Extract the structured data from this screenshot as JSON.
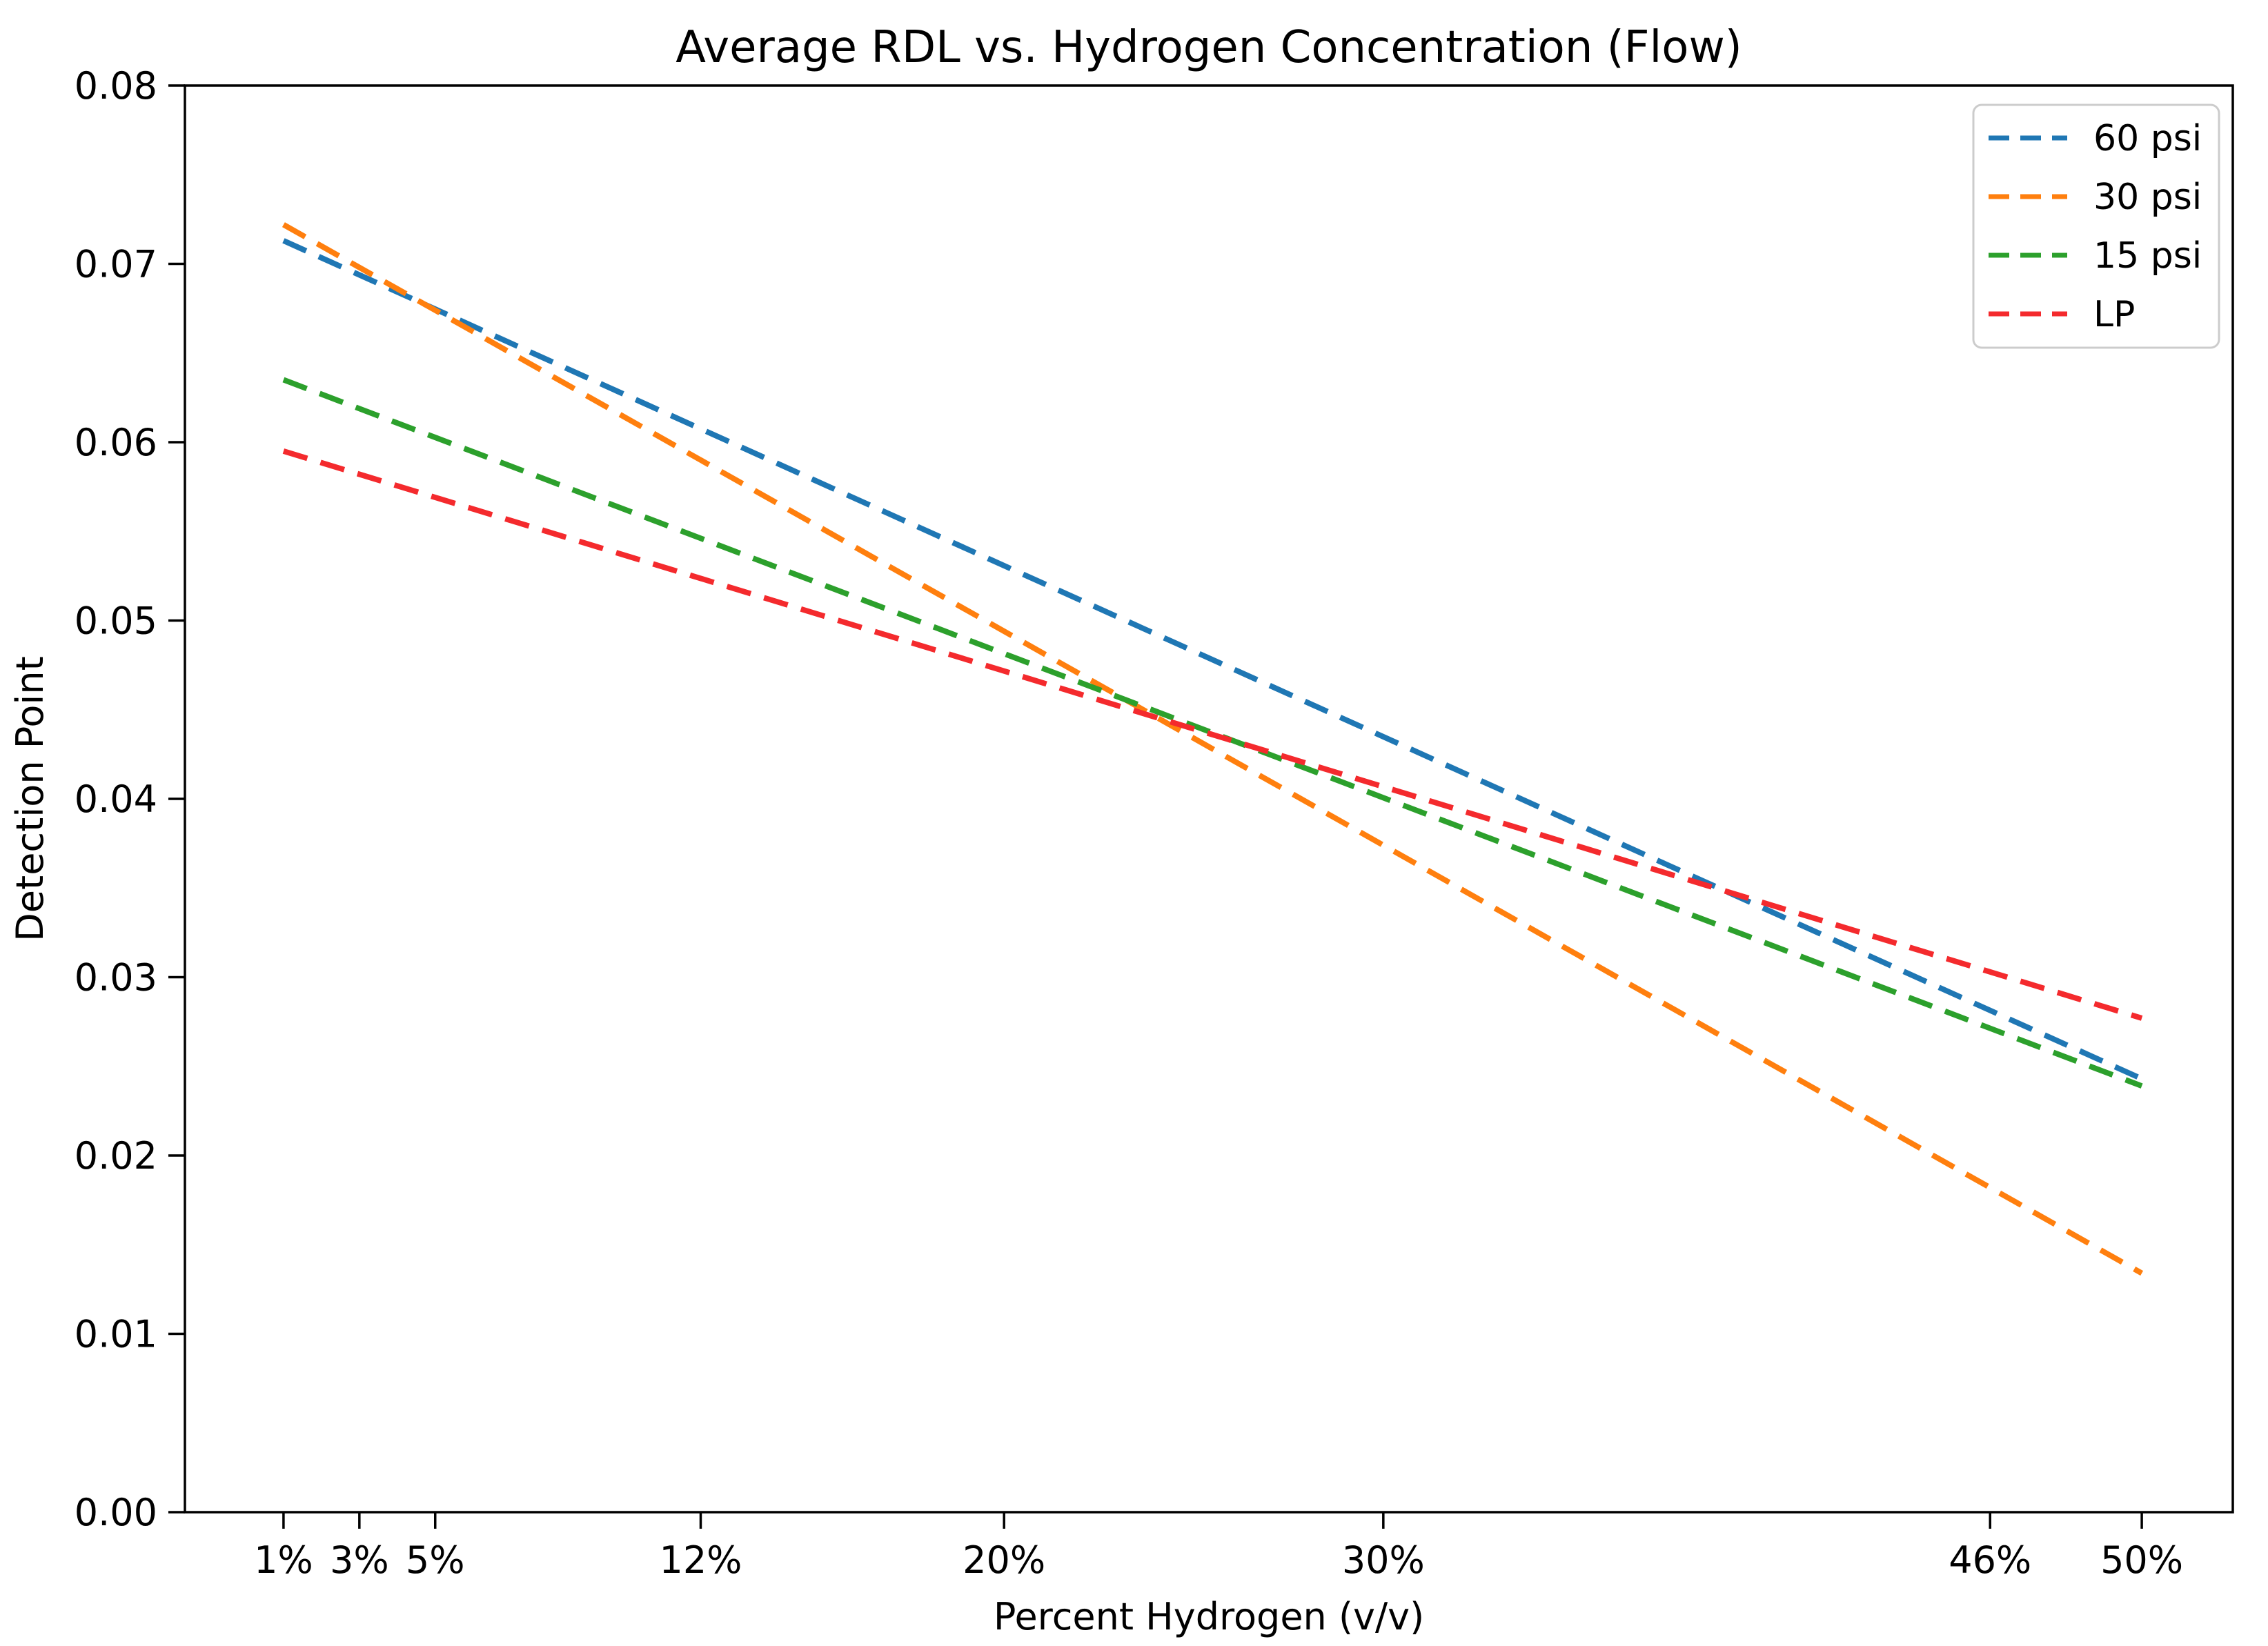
{
  "figure": {
    "title": "Average RDL vs. Hydrogen Concentration (Flow)",
    "xlabel": "Percent Hydrogen (v/v)",
    "ylabel": "Detection Point"
  },
  "chart_data": {
    "type": "line",
    "title": "Average RDL vs. Hydrogen Concentration (Flow)",
    "xlabel": "Percent Hydrogen (v/v)",
    "ylabel": "Detection Point",
    "line_style": "dashed",
    "grid": false,
    "background_color": "#ffffff",
    "text_color": "#000000",
    "xlim": [
      -1.6,
      52.4
    ],
    "ylim": [
      0,
      0.08
    ],
    "x_ticks": {
      "values": [
        1,
        3,
        5,
        12,
        20,
        30,
        46,
        50
      ],
      "labels": [
        "1%",
        "3%",
        "5%",
        "12%",
        "20%",
        "30%",
        "46%",
        "50%"
      ]
    },
    "y_ticks": {
      "values": [
        0.0,
        0.01,
        0.02,
        0.03,
        0.04,
        0.05,
        0.06,
        0.07,
        0.08
      ],
      "labels": [
        "0.00",
        "0.01",
        "0.02",
        "0.03",
        "0.04",
        "0.05",
        "0.06",
        "0.07",
        "0.08"
      ]
    },
    "series": [
      {
        "name": "60 psi",
        "color": "#1f77b4",
        "dash": "dashed",
        "x": [
          1,
          50
        ],
        "y": [
          0.0713,
          0.0243
        ]
      },
      {
        "name": "30 psi",
        "color": "#ff7f0e",
        "dash": "dashed",
        "x": [
          1,
          50
        ],
        "y": [
          0.0722,
          0.0134
        ]
      },
      {
        "name": "15 psi",
        "color": "#2ca02c",
        "dash": "dashed",
        "x": [
          1,
          50
        ],
        "y": [
          0.0635,
          0.0239
        ]
      },
      {
        "name": "LP",
        "color": "#f42a2d",
        "dash": "dashed",
        "x": [
          1,
          50
        ],
        "y": [
          0.0595,
          0.0277
        ]
      }
    ],
    "values_at_x_ticks": {
      "x_percent": [
        1,
        3,
        5,
        12,
        20,
        30,
        46,
        50
      ],
      "60 psi": [
        0.0713,
        0.0694,
        0.0675,
        0.0608,
        0.0531,
        0.0435,
        0.0281,
        0.0243
      ],
      "30 psi": [
        0.0722,
        0.0698,
        0.0674,
        0.059,
        0.0494,
        0.0374,
        0.0182,
        0.0134
      ],
      "15 psi": [
        0.0635,
        0.0619,
        0.0603,
        0.0546,
        0.0482,
        0.0401,
        0.0271,
        0.0239
      ],
      "LP": [
        0.0595,
        0.0582,
        0.0569,
        0.0524,
        0.0472,
        0.0407,
        0.0303,
        0.0277
      ]
    },
    "legend": {
      "position": "upper right",
      "entries": [
        "60 psi",
        "30 psi",
        "15 psi",
        "LP"
      ]
    }
  }
}
